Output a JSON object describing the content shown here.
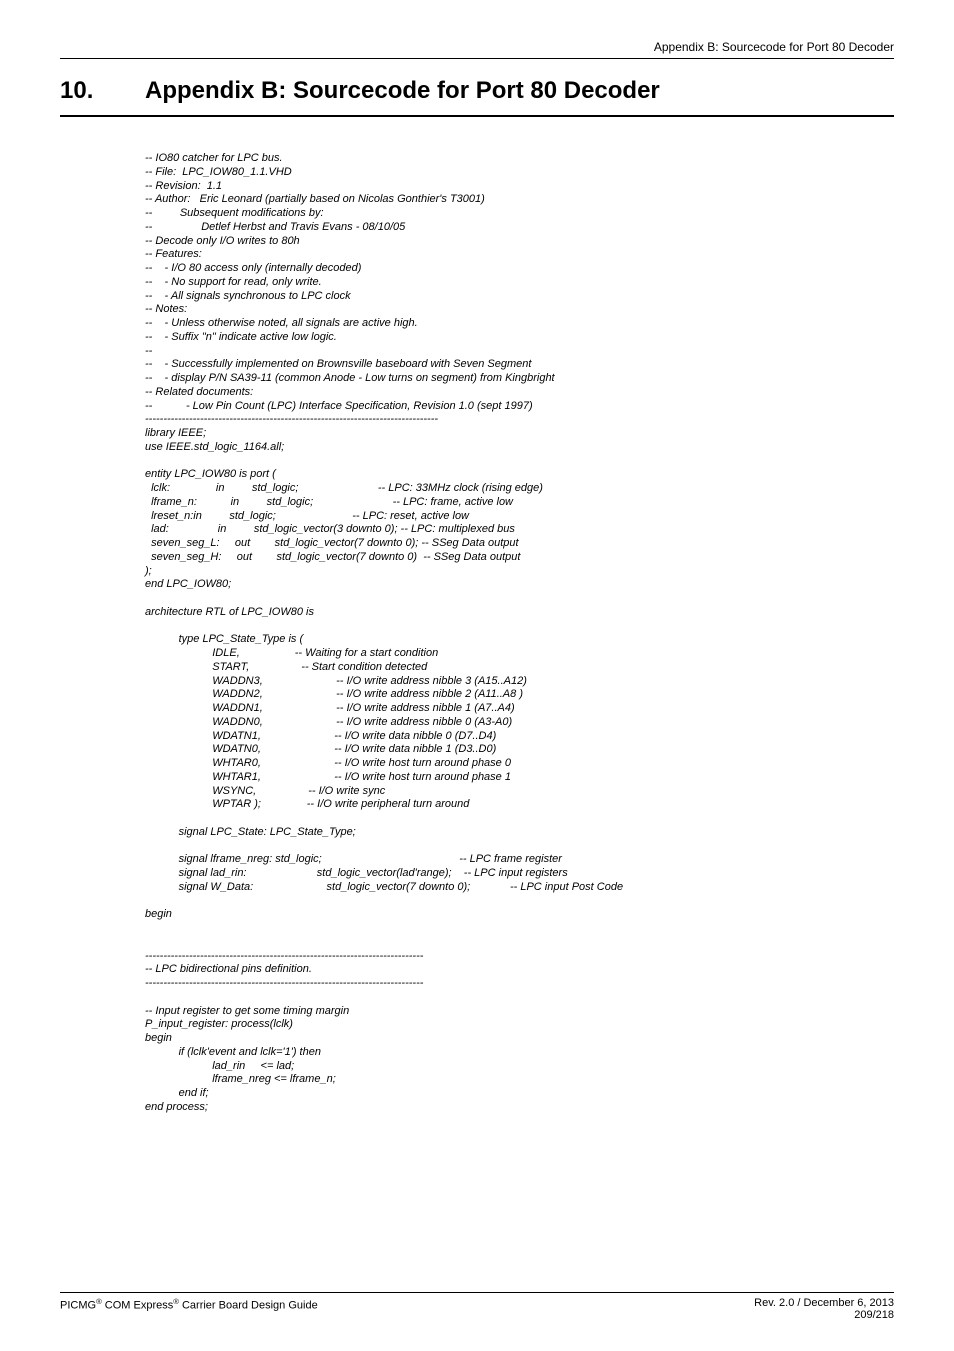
{
  "header": {
    "right": "Appendix B: Sourcecode for Port 80 Decoder"
  },
  "chapter": {
    "number": "10.",
    "title": "Appendix B: Sourcecode for Port 80 Decoder"
  },
  "code": {
    "text": "-- IO80 catcher for LPC bus.\n-- File:  LPC_IOW80_1.1.VHD\n-- Revision:  1.1\n-- Author:   Eric Leonard (partially based on Nicolas Gonthier's T3001)\n--         Subsequent modifications by:\n--                Detlef Herbst and Travis Evans - 08/10/05\n-- Decode only I/O writes to 80h\n-- Features:\n--    - I/O 80 access only (internally decoded)\n--    - No support for read, only write.\n--    - All signals synchronous to LPC clock\n-- Notes:\n--    - Unless otherwise noted, all signals are active high.\n--    - Suffix \"n\" indicate active low logic.\n--\n--    - Successfully implemented on Brownsville baseboard with Seven Segment\n--    - display P/N SA39-11 (common Anode - Low turns on segment) from Kingbright\n-- Related documents:\n--           - Low Pin Count (LPC) Interface Specification, Revision 1.0 (sept 1997)\n--------------------------------------------------------------------------------\nlibrary IEEE;\nuse IEEE.std_logic_1164.all;\n\nentity LPC_IOW80 is port (\n  lclk:               in         std_logic;                          -- LPC: 33MHz clock (rising edge)\n  lframe_n:           in         std_logic;                          -- LPC: frame, active low\n  lreset_n:in         std_logic;                         -- LPC: reset, active low\n  lad:                in         std_logic_vector(3 downto 0); -- LPC: multiplexed bus\n  seven_seg_L:     out        std_logic_vector(7 downto 0); -- SSeg Data output\n  seven_seg_H:     out        std_logic_vector(7 downto 0)  -- SSeg Data output\n);\nend LPC_IOW80;\n\narchitecture RTL of LPC_IOW80 is\n\n           type LPC_State_Type is (\n                      IDLE,                  -- Waiting for a start condition\n                      START,                 -- Start condition detected\n                      WADDN3,                        -- I/O write address nibble 3 (A15..A12)\n                      WADDN2,                        -- I/O write address nibble 2 (A11..A8 )\n                      WADDN1,                        -- I/O write address nibble 1 (A7..A4)\n                      WADDN0,                        -- I/O write address nibble 0 (A3-A0)\n                      WDATN1,                        -- I/O write data nibble 0 (D7..D4)\n                      WDATN0,                        -- I/O write data nibble 1 (D3..D0)\n                      WHTAR0,                        -- I/O write host turn around phase 0\n                      WHTAR1,                        -- I/O write host turn around phase 1\n                      WSYNC,                 -- I/O write sync\n                      WPTAR );               -- I/O write peripheral turn around\n\n           signal LPC_State: LPC_State_Type;\n\n           signal lframe_nreg: std_logic;                                             -- LPC frame register\n           signal lad_rin:                       std_logic_vector(lad'range);    -- LPC input registers\n           signal W_Data:                        std_logic_vector(7 downto 0);             -- LPC input Post Code\n\nbegin\n\n\n----------------------------------------------------------------------------\n-- LPC bidirectional pins definition.\n----------------------------------------------------------------------------\n\n-- Input register to get some timing margin\nP_input_register: process(lclk)\nbegin\n           if (lclk'event and lclk='1') then\n                      lad_rin     <= lad;\n                      lframe_nreg <= lframe_n;\n           end if;\nend process;"
  },
  "footer": {
    "left_prefix": "PICMG",
    "left_mid": " COM Express",
    "left_suffix": " Carrier Board Design Guide",
    "rev": "Rev. 2.0 / December 6, 2013",
    "page": "209/218"
  }
}
